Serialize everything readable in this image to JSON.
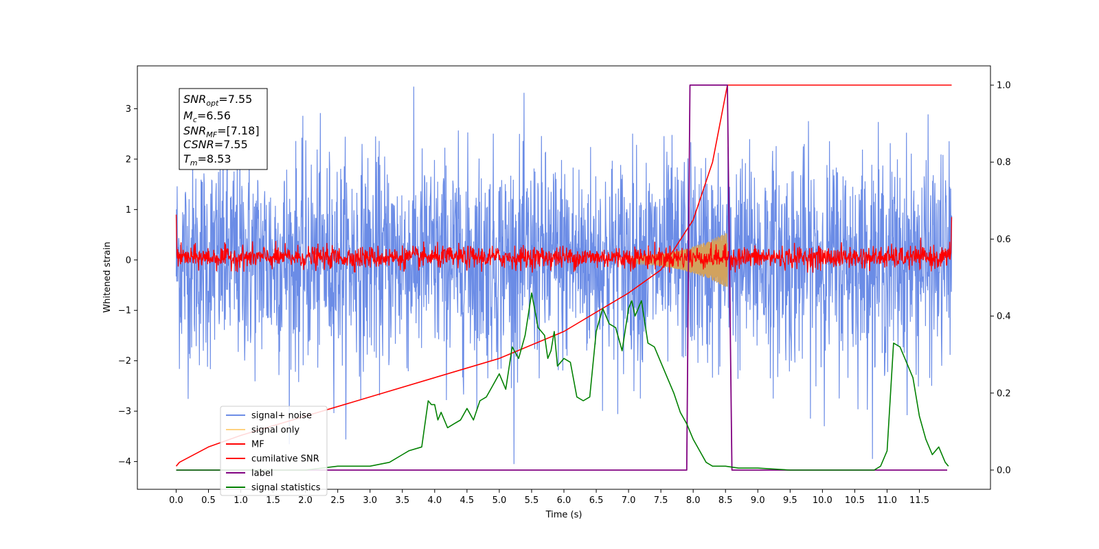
{
  "chart_data": {
    "type": "line",
    "xlabel": "Time (s)",
    "ylabel": "Whitened strain",
    "xlim": [
      -0.6,
      12.6
    ],
    "ylim": [
      -4.55,
      3.85
    ],
    "ylim_right": [
      -0.05,
      1.05
    ],
    "xticks": [
      "0.0",
      "0.5",
      "1.0",
      "1.5",
      "2.0",
      "2.5",
      "3.0",
      "3.5",
      "4.0",
      "4.5",
      "5.0",
      "5.5",
      "6.0",
      "6.5",
      "7.0",
      "7.5",
      "8.0",
      "8.5",
      "9.0",
      "9.5",
      "10.0",
      "10.5",
      "11.0",
      "11.5"
    ],
    "yticks_left": [
      "−4",
      "−3",
      "−2",
      "−1",
      "0",
      "1",
      "2",
      "3"
    ],
    "yticks_right": [
      "0.0",
      "0.2",
      "0.4",
      "0.6",
      "0.8",
      "1.0"
    ],
    "annotation": {
      "line1": {
        "base": "SNR",
        "sub": "opt",
        "rest": "=7.55"
      },
      "line2": {
        "base": "M",
        "sub": "c",
        "rest": "=6.56"
      },
      "line3": {
        "base": "SNR",
        "sub": "MF",
        "rest": "=[7.18]"
      },
      "line4": {
        "base": "CSNR",
        "sub": "",
        "rest": "=7.55"
      },
      "line5": {
        "base": "T",
        "sub": "m",
        "rest": "=8.53"
      }
    },
    "legend": {
      "position": "lower left",
      "entries": [
        "signal+ noise",
        "signal only",
        "MF",
        "cumilative SNR",
        "label",
        "signal statistics"
      ]
    },
    "series": [
      {
        "name": "signal+ noise",
        "color": "#6b8ce6",
        "axis": "left",
        "x_range": [
          0,
          12
        ],
        "amplitude_max": 3.5,
        "amplitude_min": -4.05
      },
      {
        "name": "signal only",
        "color": "#d2a25e",
        "axis": "left",
        "x_range": [
          7.0,
          8.53
        ],
        "amplitude_max": 0.48
      },
      {
        "name": "MF",
        "color": "#ff0000",
        "axis": "left",
        "x_range": [
          0,
          12
        ],
        "amplitude_max": 0.45,
        "amplitude_min": -0.25
      },
      {
        "name": "cumilative SNR",
        "color": "#ff0000",
        "axis": "right",
        "x": [
          0.0,
          0.05,
          0.5,
          1.0,
          2.0,
          3.0,
          4.0,
          5.0,
          6.0,
          7.0,
          7.5,
          8.0,
          8.3,
          8.53,
          8.55,
          12.0
        ],
        "y": [
          0.01,
          0.02,
          0.06,
          0.09,
          0.14,
          0.19,
          0.24,
          0.29,
          0.36,
          0.46,
          0.52,
          0.65,
          0.8,
          1.0,
          1.0,
          1.0
        ]
      },
      {
        "name": "label",
        "color": "#800080",
        "axis": "right",
        "x": [
          0.0,
          7.9,
          7.95,
          8.53,
          8.6,
          11.93
        ],
        "y": [
          0.0,
          0.0,
          1.0,
          1.0,
          0.0,
          0.0
        ]
      },
      {
        "name": "signal statistics",
        "color": "#008000",
        "axis": "right",
        "x": [
          0.0,
          1.0,
          2.0,
          2.5,
          3.0,
          3.3,
          3.5,
          3.6,
          3.8,
          3.9,
          3.95,
          4.0,
          4.05,
          4.1,
          4.2,
          4.3,
          4.4,
          4.5,
          4.6,
          4.7,
          4.8,
          4.9,
          5.0,
          5.1,
          5.2,
          5.3,
          5.4,
          5.5,
          5.6,
          5.7,
          5.75,
          5.8,
          5.85,
          5.9,
          6.0,
          6.1,
          6.2,
          6.3,
          6.4,
          6.5,
          6.6,
          6.7,
          6.8,
          6.9,
          7.0,
          7.05,
          7.1,
          7.2,
          7.3,
          7.4,
          7.5,
          7.6,
          7.7,
          7.8,
          7.9,
          8.0,
          8.1,
          8.2,
          8.3,
          8.4,
          8.5,
          8.7,
          9.0,
          9.5,
          10.0,
          10.5,
          10.8,
          10.9,
          11.0,
          11.05,
          11.1,
          11.2,
          11.3,
          11.4,
          11.5,
          11.6,
          11.7,
          11.8,
          11.9,
          11.95
        ],
        "y": [
          0.0,
          0.0,
          0.0,
          0.01,
          0.01,
          0.02,
          0.04,
          0.05,
          0.06,
          0.18,
          0.17,
          0.17,
          0.13,
          0.15,
          0.11,
          0.12,
          0.13,
          0.16,
          0.13,
          0.18,
          0.19,
          0.22,
          0.25,
          0.21,
          0.32,
          0.29,
          0.35,
          0.46,
          0.37,
          0.35,
          0.29,
          0.31,
          0.36,
          0.27,
          0.29,
          0.28,
          0.19,
          0.18,
          0.19,
          0.36,
          0.42,
          0.38,
          0.37,
          0.31,
          0.42,
          0.44,
          0.4,
          0.44,
          0.33,
          0.32,
          0.28,
          0.24,
          0.2,
          0.15,
          0.12,
          0.08,
          0.05,
          0.02,
          0.01,
          0.01,
          0.01,
          0.005,
          0.005,
          0.0,
          0.0,
          0.0,
          0.0,
          0.01,
          0.05,
          0.19,
          0.33,
          0.32,
          0.28,
          0.24,
          0.14,
          0.08,
          0.04,
          0.06,
          0.02,
          0.01
        ]
      }
    ]
  }
}
